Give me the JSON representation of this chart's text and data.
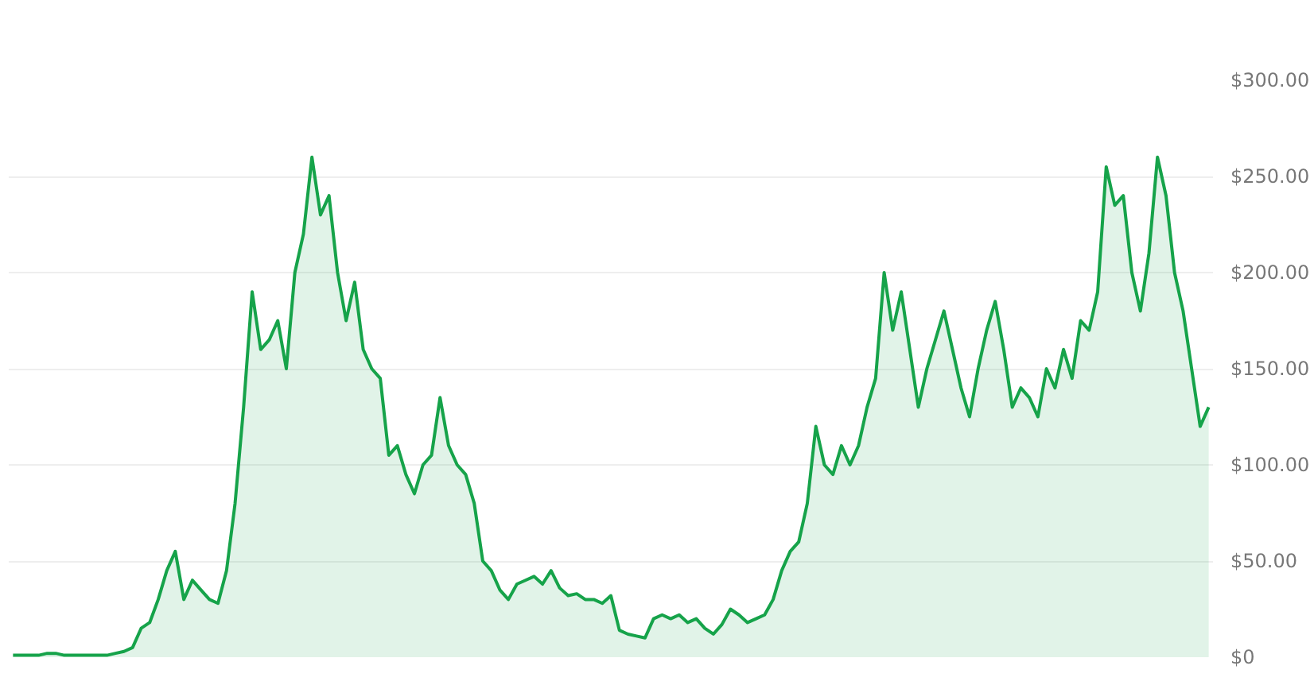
{
  "chart_data": {
    "type": "area",
    "categories": [
      null,
      null,
      null,
      null,
      null,
      null,
      null,
      null,
      null,
      null,
      null,
      null,
      null,
      null,
      null,
      null,
      null,
      null,
      null,
      null,
      null,
      null,
      null,
      null,
      null,
      null,
      null,
      null,
      null,
      null,
      null,
      null,
      null,
      null,
      null,
      null,
      null,
      null,
      null,
      null,
      null,
      null,
      null,
      null,
      null,
      null,
      null,
      null,
      null,
      null,
      null,
      null,
      null,
      null,
      null,
      null,
      null,
      null,
      null,
      null,
      null,
      null,
      null,
      null,
      null,
      null,
      null,
      null,
      null,
      null,
      null,
      null,
      null,
      null,
      null,
      null,
      null,
      null,
      null,
      null,
      null,
      null,
      null,
      null,
      null,
      null,
      null,
      null,
      null,
      null,
      null,
      null,
      null,
      null,
      null,
      null,
      null,
      null,
      null,
      null,
      null,
      null,
      null,
      null,
      null,
      null,
      null,
      null,
      null,
      null,
      null,
      null,
      null,
      null,
      null,
      null,
      null,
      null,
      null,
      null,
      null,
      null,
      null,
      null,
      null,
      null,
      null,
      null,
      null,
      null,
      null,
      null,
      null,
      null,
      null,
      null,
      null,
      null,
      null,
      null,
      null
    ],
    "series": [
      {
        "color": "#16a34a",
        "values": [
          1,
          1,
          1,
          1,
          2,
          2,
          1,
          1,
          1,
          1,
          1,
          1,
          2,
          3,
          5,
          15,
          18,
          30,
          45,
          55,
          30,
          40,
          35,
          30,
          28,
          45,
          80,
          130,
          190,
          160,
          165,
          175,
          150,
          200,
          220,
          260,
          230,
          240,
          200,
          175,
          195,
          160,
          150,
          145,
          105,
          110,
          95,
          85,
          100,
          105,
          135,
          110,
          100,
          95,
          80,
          50,
          45,
          35,
          30,
          38,
          40,
          42,
          38,
          45,
          36,
          32,
          33,
          30,
          30,
          28,
          32,
          14,
          12,
          11,
          10,
          20,
          22,
          20,
          22,
          18,
          20,
          15,
          12,
          17,
          25,
          22,
          18,
          20,
          22,
          30,
          45,
          55,
          60,
          80,
          120,
          100,
          95,
          110,
          100,
          110,
          130,
          145,
          200,
          170,
          190,
          160,
          130,
          150,
          165,
          180,
          160,
          140,
          125,
          150,
          170,
          185,
          160,
          130,
          140,
          135,
          125,
          150,
          140,
          160,
          145,
          175,
          170,
          190,
          255,
          235,
          240,
          200,
          180,
          210,
          260,
          240,
          200,
          180,
          150,
          120,
          130
        ]
      }
    ],
    "ylim": [
      0,
      300
    ],
    "yticks": [
      {
        "value": 0,
        "label": "$0"
      },
      {
        "value": 50,
        "label": "$50.00"
      },
      {
        "value": 100,
        "label": "$100.00"
      },
      {
        "value": 150,
        "label": "$150.00"
      },
      {
        "value": 200,
        "label": "$200.00"
      },
      {
        "value": 250,
        "label": "$250.00"
      },
      {
        "value": 300,
        "label": "$300.00"
      }
    ],
    "grid": "y",
    "tick_labels": "y"
  }
}
